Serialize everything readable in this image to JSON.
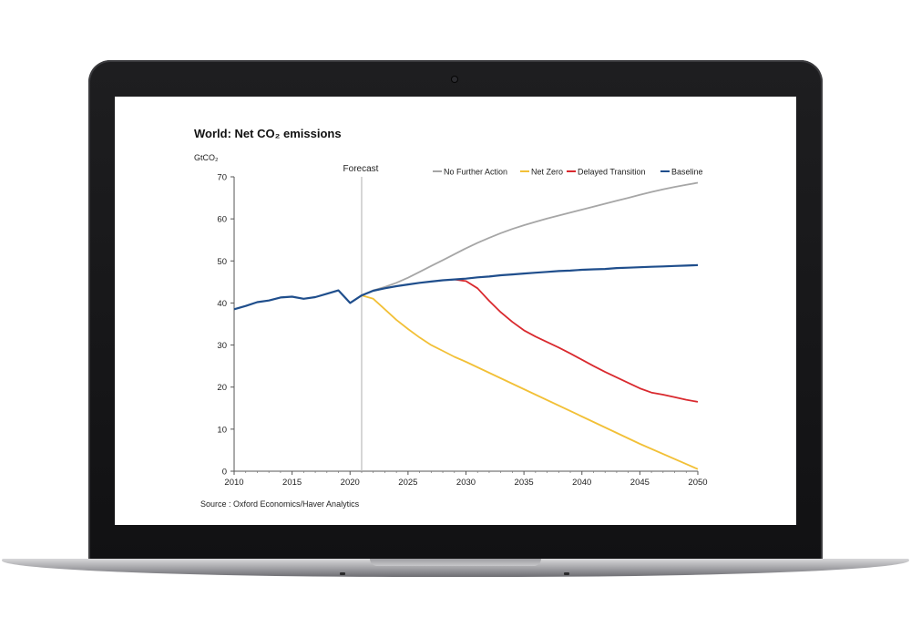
{
  "chart_data": {
    "type": "line",
    "title": "World: Net CO₂ emissions",
    "ylabel": "GtCO₂",
    "xlabel": "",
    "source": "Source : Oxford Economics/Haver Analytics",
    "annotation": "Forecast",
    "forecast_year": 2021,
    "xlim": [
      2010,
      2050
    ],
    "ylim": [
      0,
      70
    ],
    "x_ticks": [
      2010,
      2015,
      2020,
      2025,
      2030,
      2035,
      2040,
      2045,
      2050
    ],
    "y_ticks": [
      0,
      10,
      20,
      30,
      40,
      50,
      60,
      70
    ],
    "legend_position": "top-right",
    "grid": false,
    "series": [
      {
        "name": "No Further Action",
        "color": "#a6a6a6",
        "x": [
          2021,
          2022,
          2023,
          2024,
          2025,
          2026,
          2027,
          2028,
          2029,
          2030,
          2031,
          2032,
          2033,
          2034,
          2035,
          2036,
          2037,
          2038,
          2039,
          2040,
          2041,
          2042,
          2043,
          2044,
          2045,
          2046,
          2047,
          2048,
          2049,
          2050
        ],
        "values": [
          41.8,
          43.0,
          43.8,
          44.8,
          46.0,
          47.4,
          48.8,
          50.2,
          51.6,
          53.0,
          54.3,
          55.5,
          56.6,
          57.6,
          58.5,
          59.3,
          60.1,
          60.8,
          61.5,
          62.2,
          62.9,
          63.6,
          64.3,
          65.0,
          65.7,
          66.4,
          67.0,
          67.6,
          68.1,
          68.6
        ]
      },
      {
        "name": "Net Zero",
        "color": "#f2c037",
        "x": [
          2021,
          2022,
          2023,
          2024,
          2025,
          2026,
          2027,
          2028,
          2029,
          2030,
          2035,
          2040,
          2045,
          2050
        ],
        "values": [
          41.8,
          41.0,
          38.5,
          36.0,
          33.8,
          31.8,
          30.0,
          28.6,
          27.2,
          26.0,
          19.5,
          13.0,
          6.5,
          0.5
        ]
      },
      {
        "name": "Delayed Transition",
        "color": "#d9292e",
        "x": [
          2029,
          2030,
          2031,
          2032,
          2033,
          2034,
          2035,
          2036,
          2037,
          2038,
          2039,
          2040,
          2041,
          2042,
          2043,
          2044,
          2045,
          2046,
          2047,
          2048,
          2049,
          2050
        ],
        "values": [
          45.6,
          45.2,
          43.5,
          40.5,
          37.8,
          35.5,
          33.5,
          32.0,
          30.7,
          29.4,
          28.0,
          26.5,
          25.0,
          23.6,
          22.3,
          21.0,
          19.7,
          18.7,
          18.2,
          17.6,
          17.0,
          16.5
        ]
      },
      {
        "name": "Baseline",
        "color": "#1f4e8c",
        "x": [
          2010,
          2011,
          2012,
          2013,
          2014,
          2015,
          2016,
          2017,
          2018,
          2019,
          2020,
          2021,
          2022,
          2023,
          2024,
          2025,
          2026,
          2027,
          2028,
          2029,
          2030,
          2031,
          2032,
          2033,
          2034,
          2035,
          2036,
          2037,
          2038,
          2039,
          2040,
          2041,
          2042,
          2043,
          2044,
          2045,
          2046,
          2047,
          2048,
          2049,
          2050
        ],
        "values": [
          38.5,
          39.3,
          40.2,
          40.6,
          41.3,
          41.5,
          41.0,
          41.4,
          42.2,
          43.0,
          40.0,
          41.8,
          42.9,
          43.5,
          44.0,
          44.4,
          44.8,
          45.1,
          45.4,
          45.6,
          45.8,
          46.1,
          46.3,
          46.6,
          46.8,
          47.0,
          47.2,
          47.4,
          47.6,
          47.7,
          47.9,
          48.0,
          48.1,
          48.3,
          48.4,
          48.5,
          48.6,
          48.7,
          48.8,
          48.9,
          49.0
        ]
      }
    ]
  }
}
